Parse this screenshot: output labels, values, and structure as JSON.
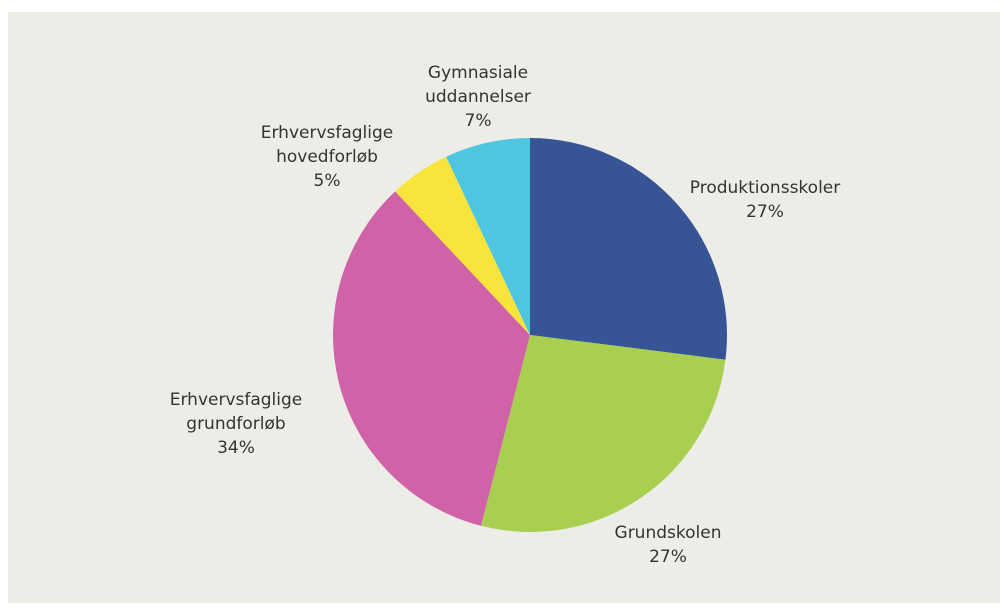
{
  "chart_data": {
    "type": "pie",
    "categories": [
      "Produktionsskoler",
      "Grundskolen",
      "Erhvervsfaglige grundforløb",
      "Erhvervsfaglige hovedforløb",
      "Gymnasiale uddannelser"
    ],
    "values": [
      27,
      27,
      34,
      5,
      7
    ],
    "value_labels": [
      "27%",
      "27%",
      "34%",
      "5%",
      "7%"
    ],
    "colors": [
      "#375496",
      "#a8cf4f",
      "#d062a7",
      "#f8e43a",
      "#4fc6df"
    ]
  }
}
